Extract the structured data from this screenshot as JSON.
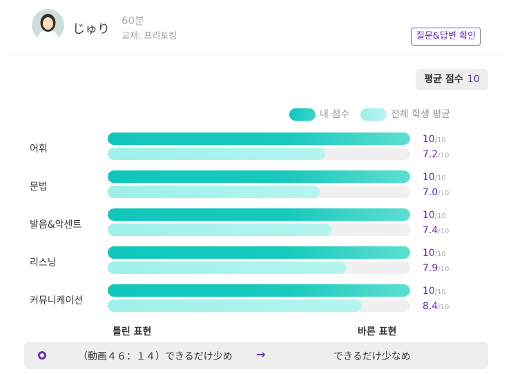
{
  "header": {
    "tutor_name": "じゅり",
    "duration": "60분",
    "textbook": "교재: 프리토킹",
    "qa_button": "질문&답변 확인"
  },
  "average": {
    "label": "평균 점수",
    "value": "10"
  },
  "legend": {
    "mine": "내 점수",
    "overall": "전체 학생 평균"
  },
  "colors": {
    "accent": "#6a2dbd",
    "mine_bar": "#10c7bd",
    "avg_bar": "#a8f1ec",
    "track": "#f0f0f0"
  },
  "chart_data": {
    "type": "bar",
    "categories": [
      "어휘",
      "문법",
      "발음&악센트",
      "리스닝",
      "커뮤니케이션"
    ],
    "series": [
      {
        "name": "내 점수",
        "values": [
          10,
          10,
          10,
          10,
          10
        ]
      },
      {
        "name": "전체 학생 평균",
        "values": [
          7.2,
          7.0,
          7.4,
          7.9,
          8.4
        ]
      }
    ],
    "max": 10,
    "max_label": "/10",
    "score_labels_mine": [
      "10",
      "10",
      "10",
      "10",
      "10"
    ],
    "score_labels_avg": [
      "7.2",
      "7.0",
      "7.4",
      "7.9",
      "8.4"
    ]
  },
  "axis": {
    "left": "틀린 표현",
    "right": "바른 표현"
  },
  "correction": {
    "wrong": "（動画４６：１４）できるだけ少め",
    "arrow": "→",
    "right": "できるだけ少なめ"
  },
  "icons": {
    "arrow": "arrow-right-icon",
    "marker": "radio-marker-icon"
  }
}
